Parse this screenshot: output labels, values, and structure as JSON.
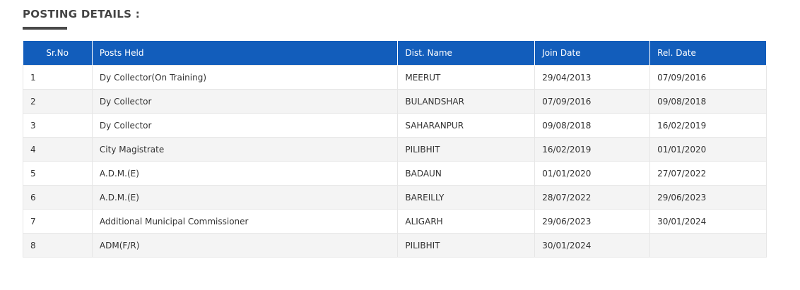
{
  "section_title": "POSTING DETAILS :",
  "columns": [
    "Sr.No",
    "Posts Held",
    "Dist. Name",
    "Join Date",
    "Rel. Date"
  ],
  "rows": [
    [
      "1",
      "Dy Collector(On Training)",
      "MEERUT",
      "29/04/2013",
      "07/09/2016"
    ],
    [
      "2",
      "Dy Collector",
      "BULANDSHAR",
      "07/09/2016",
      "09/08/2018"
    ],
    [
      "3",
      "Dy Collector",
      "SAHARANPUR",
      "09/08/2018",
      "16/02/2019"
    ],
    [
      "4",
      "City Magistrate",
      "PILIBHIT",
      "16/02/2019",
      "01/01/2020"
    ],
    [
      "5",
      "A.D.M.(E)",
      "BADAUN",
      "01/01/2020",
      "27/07/2022"
    ],
    [
      "6",
      "A.D.M.(E)",
      "BAREILLY",
      "28/07/2022",
      "29/06/2023"
    ],
    [
      "7",
      "Additional Municipal Commissioner",
      "ALIGARH",
      "29/06/2023",
      "30/01/2024"
    ],
    [
      "8",
      "ADM(F/R)",
      "PILIBHIT",
      "30/01/2024",
      ""
    ]
  ],
  "colors": {
    "header_bg": "#125dbb",
    "stripe": "#f4f4f4"
  }
}
